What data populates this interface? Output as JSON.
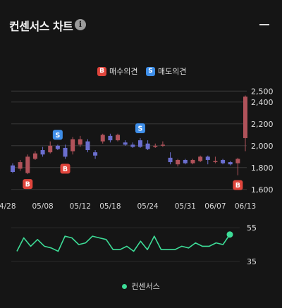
{
  "header": {
    "title": "컨센서스 차트",
    "info_icon": "info-icon",
    "collapse_icon": "minus-icon"
  },
  "legend": {
    "buy": {
      "badge": "B",
      "label": "매수의견",
      "color": "#e0453c"
    },
    "sell": {
      "badge": "S",
      "label": "매도의견",
      "color": "#3e8ee8"
    }
  },
  "colors": {
    "up": "#b0525a",
    "down": "#6b6fd0",
    "consensus_line": "#3ddc97",
    "grid": "#3a3a3a"
  },
  "chart_data": [
    {
      "type": "candlestick",
      "title": "",
      "ylim": [
        1560,
        2560
      ],
      "y_ticks": [
        "1,600",
        "1,800",
        "2,000",
        "2,200",
        "2,400",
        "2,500"
      ],
      "x_ticks": [
        "04/28",
        "05/08",
        "05/12",
        "05/18",
        "05/24",
        "05/31",
        "06/07",
        "06/13"
      ],
      "grid": true,
      "candles": [
        {
          "o": 1820,
          "c": 1760,
          "h": 1840,
          "l": 1750
        },
        {
          "o": 1790,
          "c": 1850,
          "h": 1870,
          "l": 1770
        },
        {
          "o": 1750,
          "c": 1900,
          "h": 1920,
          "l": 1740
        },
        {
          "o": 1880,
          "c": 1930,
          "h": 1950,
          "l": 1870
        },
        {
          "o": 1960,
          "c": 1920,
          "h": 1990,
          "l": 1900
        },
        {
          "o": 1940,
          "c": 2000,
          "h": 2040,
          "l": 1930
        },
        {
          "o": 2000,
          "c": 1970,
          "h": 2010,
          "l": 1960
        },
        {
          "o": 1980,
          "c": 1900,
          "h": 2010,
          "l": 1880
        },
        {
          "o": 1950,
          "c": 2060,
          "h": 2080,
          "l": 1920
        },
        {
          "o": 2010,
          "c": 2060,
          "h": 2090,
          "l": 1990
        },
        {
          "o": 2040,
          "c": 1960,
          "h": 2060,
          "l": 1940
        },
        {
          "o": 1940,
          "c": 1910,
          "h": 1960,
          "l": 1880
        },
        {
          "o": 2040,
          "c": 2100,
          "h": 2110,
          "l": 2020
        },
        {
          "o": 2090,
          "c": 2050,
          "h": 2110,
          "l": 2030
        },
        {
          "o": 2050,
          "c": 2100,
          "h": 2110,
          "l": 2040
        },
        {
          "o": 2030,
          "c": 2010,
          "h": 2050,
          "l": 2000
        },
        {
          "o": 2010,
          "c": 1990,
          "h": 2030,
          "l": 1980
        },
        {
          "o": 2050,
          "c": 1990,
          "h": 2070,
          "l": 1980
        },
        {
          "o": 2020,
          "c": 1970,
          "h": 2050,
          "l": 1960
        },
        {
          "o": 1990,
          "c": 2000,
          "h": 2020,
          "l": 1980
        },
        {
          "o": 2000,
          "c": 2010,
          "h": 2040,
          "l": 1990
        },
        {
          "o": 1890,
          "c": 1850,
          "h": 1940,
          "l": 1830
        },
        {
          "o": 1830,
          "c": 1870,
          "h": 1880,
          "l": 1810
        },
        {
          "o": 1870,
          "c": 1840,
          "h": 1880,
          "l": 1830
        },
        {
          "o": 1840,
          "c": 1870,
          "h": 1880,
          "l": 1830
        },
        {
          "o": 1860,
          "c": 1900,
          "h": 1910,
          "l": 1850
        },
        {
          "o": 1900,
          "c": 1870,
          "h": 1910,
          "l": 1830
        },
        {
          "o": 1850,
          "c": 1860,
          "h": 1900,
          "l": 1840
        },
        {
          "o": 1870,
          "c": 1840,
          "h": 1880,
          "l": 1830
        },
        {
          "o": 1850,
          "c": 1830,
          "h": 1860,
          "l": 1820
        },
        {
          "o": 1840,
          "c": 1880,
          "h": 1890,
          "l": 1730
        },
        {
          "o": 2070,
          "c": 2450,
          "h": 2460,
          "l": 1950
        }
      ],
      "markers": [
        {
          "type": "buy",
          "index": 2,
          "label": "B"
        },
        {
          "type": "sell",
          "index": 6,
          "label": "S"
        },
        {
          "type": "buy",
          "index": 7,
          "label": "B"
        },
        {
          "type": "sell",
          "index": 17,
          "label": "S"
        },
        {
          "type": "buy",
          "index": 30,
          "label": "B"
        }
      ]
    },
    {
      "type": "line",
      "title": "",
      "ylim": [
        32,
        58
      ],
      "y_ticks": [
        "55",
        "35"
      ],
      "series": [
        {
          "name": "컨센서스",
          "values": [
            41,
            49,
            44,
            48,
            44,
            43,
            41,
            50,
            49,
            45,
            46,
            50,
            49,
            48,
            42,
            42,
            44,
            41,
            47,
            42,
            50,
            42,
            42,
            42,
            44,
            43,
            46,
            44,
            44,
            46,
            45,
            51
          ]
        }
      ]
    }
  ]
}
